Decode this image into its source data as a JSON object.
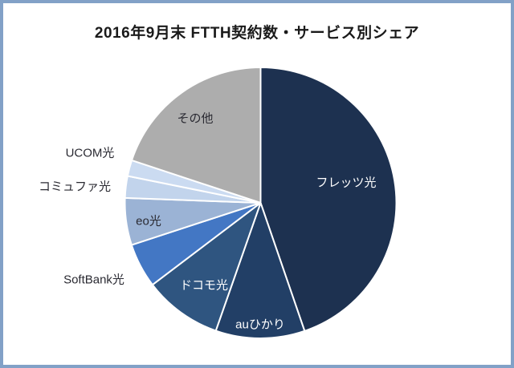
{
  "window": {
    "background_color": "#FFFFFF",
    "border_color": "#82A1C7"
  },
  "chart_data": {
    "type": "pie",
    "title": "2016年9月末 FTTH契約数・サービス別シェア",
    "legend": "none",
    "data_labels": "category names placed on or beside slices",
    "direction": "clockwise",
    "start_angle_deg": 0,
    "note": "values are approximate percent shares estimated from slice angles",
    "slices": [
      {
        "label": "フレッツ光",
        "value": 44.7,
        "color": "#1D3150",
        "label_color": "#FFFFFF"
      },
      {
        "label": "auひかり",
        "value": 10.6,
        "color": "#223F66",
        "label_color": "#FFFFFF"
      },
      {
        "label": "ドコモ光",
        "value": 9.3,
        "color": "#2F5580",
        "label_color": "#FFFFFF"
      },
      {
        "label": "SoftBank光",
        "value": 5.3,
        "color": "#4377C4",
        "label_color": "#2A2A32"
      },
      {
        "label": "eo光",
        "value": 5.6,
        "color": "#9BB3D5",
        "label_color": "#2A2A32"
      },
      {
        "label": "コミュファ光",
        "value": 2.6,
        "color": "#C2D4EC",
        "label_color": "#2A2A32"
      },
      {
        "label": "UCOM光",
        "value": 1.9,
        "color": "#CBDBF1",
        "label_color": "#2A2A32"
      },
      {
        "label": "その他",
        "value": 19.9,
        "color": "#ADADAD",
        "label_color": "#2A2A32"
      }
    ]
  }
}
